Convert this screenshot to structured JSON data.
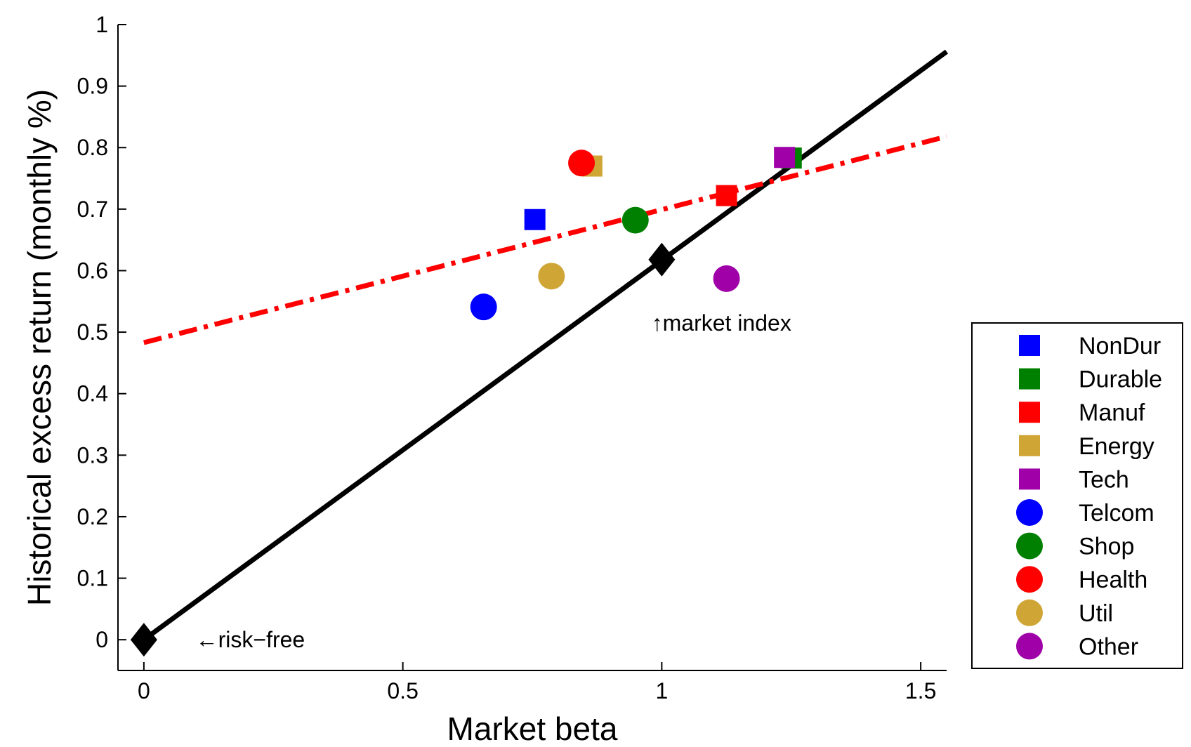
{
  "chart_data": {
    "type": "scatter",
    "xlabel": "Market beta",
    "ylabel": "Historical excess return (monthly %)",
    "xlim": [
      -0.05,
      1.55
    ],
    "ylim": [
      -0.05,
      1.0
    ],
    "xticks": [
      "0",
      "0.5",
      "1",
      "1.5"
    ],
    "xtick_values": [
      0,
      0.5,
      1,
      1.5
    ],
    "yticks": [
      "0",
      "0.1",
      "0.2",
      "0.3",
      "0.4",
      "0.5",
      "0.6",
      "0.7",
      "0.8",
      "0.9",
      "1"
    ],
    "ytick_values": [
      0,
      0.1,
      0.2,
      0.3,
      0.4,
      0.5,
      0.6,
      0.7,
      0.8,
      0.9,
      1.0
    ],
    "grid": false,
    "legend_position": "outside-right",
    "series": [
      {
        "name": "NonDur",
        "marker": "square",
        "color": "#0000ff",
        "x": 0.755,
        "y": 0.683
      },
      {
        "name": "Durable",
        "marker": "square",
        "color": "#008000",
        "x": 1.25,
        "y": 0.783
      },
      {
        "name": "Manuf",
        "marker": "square",
        "color": "#ff0000",
        "x": 1.125,
        "y": 0.722
      },
      {
        "name": "Energy",
        "marker": "square",
        "color": "#cfa535",
        "x": 0.865,
        "y": 0.77
      },
      {
        "name": "Tech",
        "marker": "square",
        "color": "#a000a8",
        "x": 1.237,
        "y": 0.784
      },
      {
        "name": "Telcom",
        "marker": "circle",
        "color": "#0000ff",
        "x": 0.656,
        "y": 0.541
      },
      {
        "name": "Shop",
        "marker": "circle",
        "color": "#008000",
        "x": 0.949,
        "y": 0.682
      },
      {
        "name": "Health",
        "marker": "circle",
        "color": "#ff0000",
        "x": 0.845,
        "y": 0.775
      },
      {
        "name": "Util",
        "marker": "circle",
        "color": "#cfa535",
        "x": 0.787,
        "y": 0.591
      },
      {
        "name": "Other",
        "marker": "circle",
        "color": "#a000a8",
        "x": 1.125,
        "y": 0.587
      }
    ],
    "lines": [
      {
        "style": "solid",
        "color": "#000000",
        "x": [
          0,
          1.55
        ],
        "y": [
          0,
          0.956
        ]
      },
      {
        "style": "dash-dot",
        "color": "#ff0000",
        "x": [
          0,
          1.55
        ],
        "y": [
          0.483,
          0.818
        ]
      }
    ],
    "special_points": [
      {
        "marker": "diamond",
        "color": "#000000",
        "x": 0,
        "y": 0
      },
      {
        "marker": "diamond",
        "color": "#000000",
        "x": 1,
        "y": 0.618
      }
    ],
    "annotations": [
      {
        "text": "←risk−free",
        "x": 0.1,
        "y": 0.0
      },
      {
        "text": "↑market index",
        "x": 0.98,
        "y": 0.515
      }
    ]
  }
}
